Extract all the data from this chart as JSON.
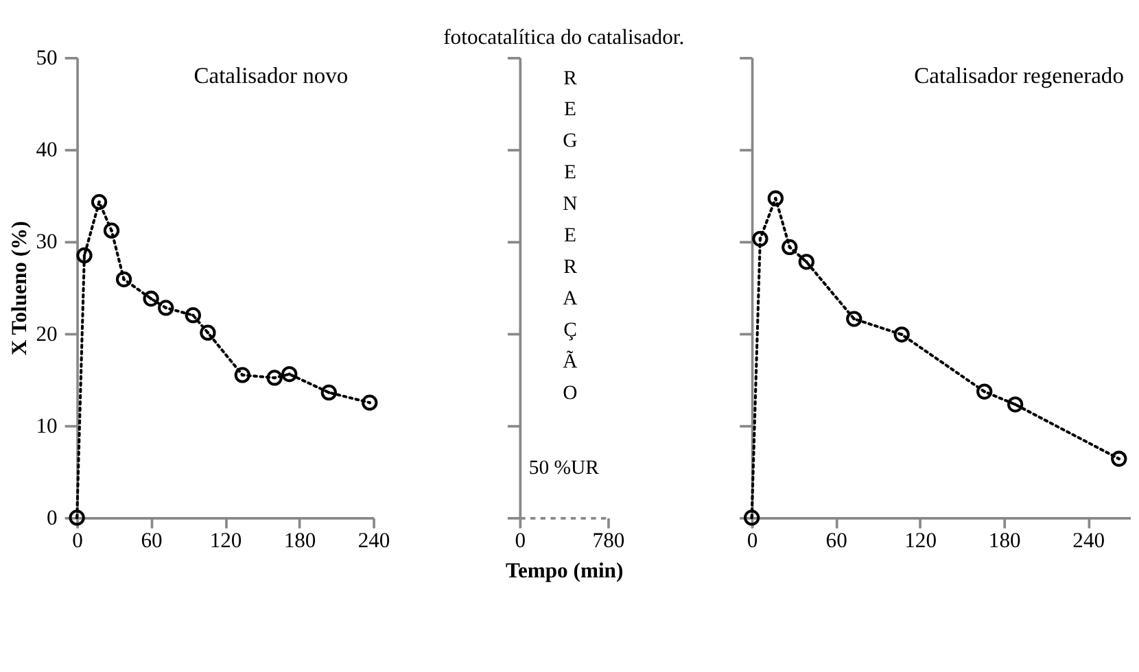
{
  "chart_data": [
    {
      "type": "line",
      "ylabel": "X Tolueno (%)",
      "annotations": [
        "Catalisador novo"
      ],
      "xlim": [
        0,
        240
      ],
      "xticks": [
        0,
        60,
        120,
        180,
        240
      ],
      "ylim": [
        0,
        50
      ],
      "yticks": [
        0,
        10,
        20,
        30,
        40,
        50
      ],
      "marker": "circle",
      "line_style": "dotted",
      "series": [
        {
          "color": "#000000",
          "x": [
            0,
            6,
            18,
            28,
            38,
            60,
            72,
            94,
            106,
            134,
            160,
            172,
            204,
            237
          ],
          "values": [
            0,
            28.5,
            34.3,
            31.2,
            25.9,
            23.8,
            22.8,
            22.0,
            20.1,
            15.5,
            15.2,
            15.6,
            13.6,
            12.5
          ]
        }
      ]
    },
    {
      "type": "line",
      "title": "fotocatalítica do catalisador.",
      "xlabel": "Tempo (min)",
      "annotations": [
        "REGENERAÇÃO",
        "50 %UR"
      ],
      "xlim": [
        0,
        780
      ],
      "xticks": [
        0,
        780
      ],
      "ylim": [
        0,
        50
      ],
      "yticks": [
        {
          "value": 0,
          "label": null
        },
        {
          "value": 10,
          "label": null
        },
        {
          "value": 20,
          "label": null
        },
        {
          "value": 30,
          "label": null
        },
        {
          "value": 40,
          "label": null
        },
        {
          "value": 50,
          "label": null
        }
      ],
      "tick_labels": "x"
    },
    {
      "type": "line",
      "annotations": [
        "Catalisador regenerado"
      ],
      "xlim": [
        0,
        270
      ],
      "xticks": [
        0,
        60,
        120,
        180,
        240
      ],
      "ylim": [
        0,
        50
      ],
      "yticks": [
        {
          "value": 0,
          "label": null
        },
        {
          "value": 10,
          "label": null
        },
        {
          "value": 20,
          "label": null
        },
        {
          "value": 30,
          "label": null
        },
        {
          "value": 40,
          "label": null
        },
        {
          "value": 50,
          "label": null
        }
      ],
      "tick_labels": "x",
      "marker": "circle",
      "line_style": "dotted",
      "series": [
        {
          "color": "#000000",
          "x": [
            0,
            6,
            17,
            27,
            39,
            73,
            107,
            166,
            188,
            262
          ],
          "values": [
            0,
            30.3,
            34.7,
            29.4,
            27.8,
            21.6,
            19.9,
            13.7,
            12.3,
            6.4
          ]
        }
      ]
    }
  ]
}
